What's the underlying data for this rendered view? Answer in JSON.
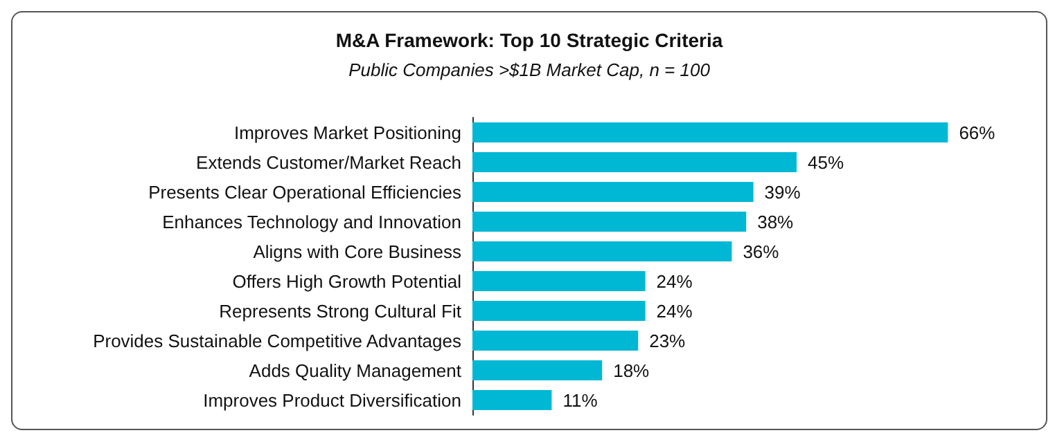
{
  "chart_data": {
    "type": "bar",
    "orientation": "horizontal",
    "title": "M&A Framework: Top 10 Strategic Criteria",
    "subtitle": "Public Companies >$1B Market Cap, n = 100",
    "categories": [
      "Improves Market Positioning",
      "Extends Customer/Market Reach",
      "Presents Clear Operational Efficiencies",
      "Enhances Technology and Innovation",
      "Aligns with Core Business",
      "Offers High Growth Potential",
      "Represents Strong Cultural Fit",
      "Provides Sustainable Competitive Advantages",
      "Adds Quality Management",
      "Improves Product Diversification"
    ],
    "values": [
      66,
      45,
      39,
      38,
      36,
      24,
      24,
      23,
      18,
      11
    ],
    "value_labels": [
      "66%",
      "45%",
      "39%",
      "38%",
      "36%",
      "24%",
      "24%",
      "23%",
      "18%",
      "11%"
    ],
    "color": "#00b8d4"
  }
}
